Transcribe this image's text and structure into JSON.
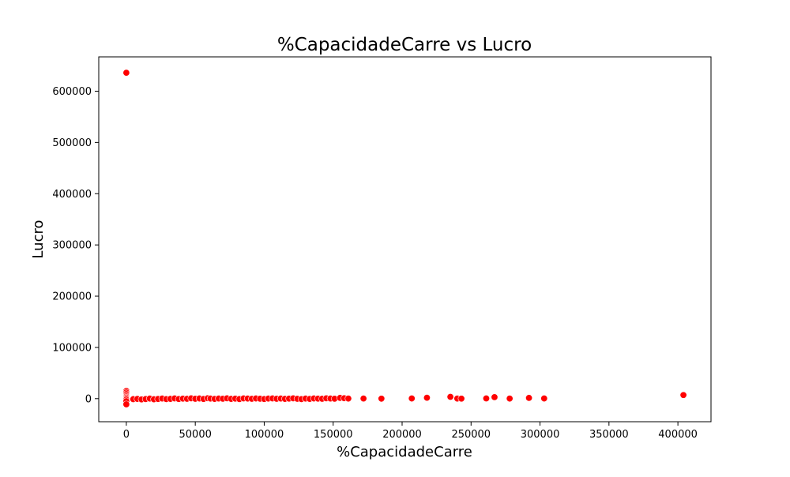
{
  "chart_data": {
    "type": "scatter",
    "title": "%CapacidadeCarre vs Lucro",
    "xlabel": "%CapacidadeCarre",
    "ylabel": "Lucro",
    "xlim": [
      -20000,
      424000
    ],
    "ylim": [
      -45000,
      667000
    ],
    "xticks": [
      0,
      50000,
      100000,
      150000,
      200000,
      250000,
      300000,
      350000,
      400000
    ],
    "yticks": [
      0,
      100000,
      200000,
      300000,
      400000,
      500000,
      600000
    ],
    "xtick_labels": [
      "0",
      "50000",
      "100000",
      "150000",
      "200000",
      "250000",
      "300000",
      "350000",
      "400000"
    ],
    "ytick_labels": [
      "0",
      "100000",
      "200000",
      "300000",
      "400000",
      "500000",
      "600000"
    ],
    "grid": false,
    "marker_color": "#ff0000",
    "marker_edge_color": "#ffffff",
    "series": [
      {
        "points": [
          [
            0,
            636000
          ],
          [
            0,
            15000
          ],
          [
            0,
            12000
          ],
          [
            0,
            9000
          ],
          [
            0,
            6000
          ],
          [
            0,
            4000
          ],
          [
            0,
            2000
          ],
          [
            0,
            0
          ],
          [
            0,
            -2000
          ],
          [
            0,
            -5000
          ],
          [
            0,
            -11000
          ],
          [
            5000,
            -1000
          ],
          [
            8000,
            -500
          ],
          [
            11000,
            -1500
          ],
          [
            14000,
            -800
          ],
          [
            17000,
            200
          ],
          [
            20000,
            -1200
          ],
          [
            23000,
            -600
          ],
          [
            26000,
            300
          ],
          [
            29000,
            -900
          ],
          [
            32000,
            -400
          ],
          [
            35000,
            500
          ],
          [
            38000,
            -700
          ],
          [
            41000,
            100
          ],
          [
            44000,
            -300
          ],
          [
            47000,
            600
          ],
          [
            50000,
            -200
          ],
          [
            53000,
            400
          ],
          [
            56000,
            -600
          ],
          [
            59000,
            900
          ],
          [
            61000,
            200
          ],
          [
            64000,
            -500
          ],
          [
            67000,
            300
          ],
          [
            70000,
            -100
          ],
          [
            73000,
            700
          ],
          [
            76000,
            -400
          ],
          [
            79000,
            100
          ],
          [
            82000,
            -800
          ],
          [
            85000,
            500
          ],
          [
            88000,
            200
          ],
          [
            91000,
            -300
          ],
          [
            94000,
            400
          ],
          [
            97000,
            -100
          ],
          [
            100000,
            -700
          ],
          [
            103000,
            200
          ],
          [
            106000,
            500
          ],
          [
            109000,
            -200
          ],
          [
            112000,
            300
          ],
          [
            115000,
            -400
          ],
          [
            118000,
            100
          ],
          [
            121000,
            600
          ],
          [
            124000,
            -300
          ],
          [
            127000,
            -900
          ],
          [
            130000,
            200
          ],
          [
            133000,
            -500
          ],
          [
            136000,
            400
          ],
          [
            139000,
            100
          ],
          [
            142000,
            -200
          ],
          [
            145000,
            700
          ],
          [
            148000,
            300
          ],
          [
            151000,
            -100
          ],
          [
            155000,
            1500
          ],
          [
            158000,
            800
          ],
          [
            161000,
            200
          ],
          [
            172000,
            300
          ],
          [
            185000,
            0
          ],
          [
            207000,
            400
          ],
          [
            218000,
            1800
          ],
          [
            235000,
            3500
          ],
          [
            240000,
            200
          ],
          [
            243000,
            100
          ],
          [
            261000,
            500
          ],
          [
            267000,
            3000
          ],
          [
            278000,
            200
          ],
          [
            292000,
            1500
          ],
          [
            303000,
            400
          ],
          [
            404000,
            7000
          ]
        ]
      }
    ]
  }
}
